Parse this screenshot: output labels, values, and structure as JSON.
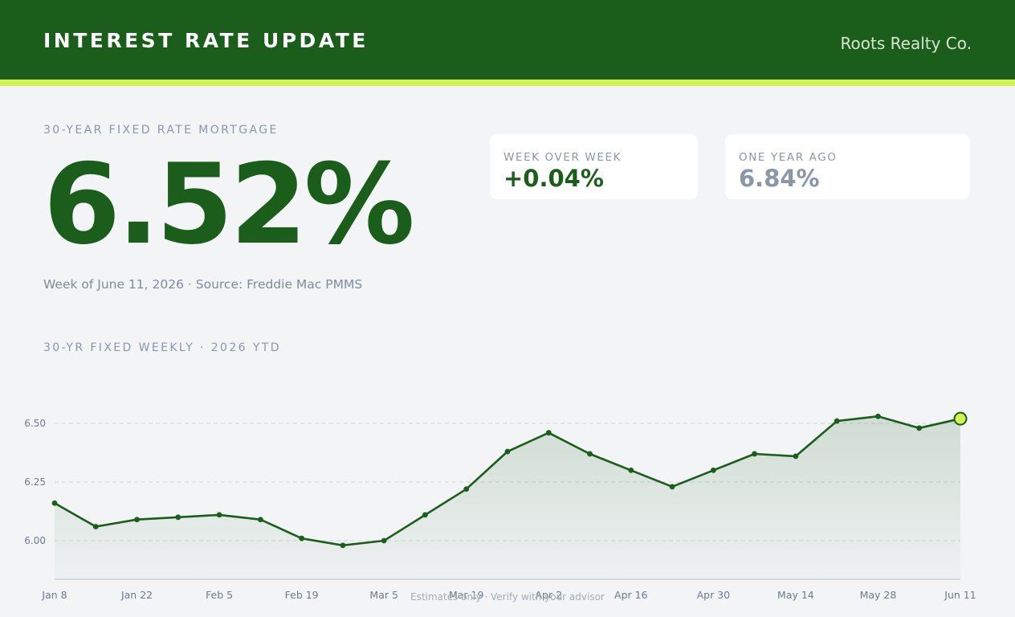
{
  "header": {
    "title": "INTEREST RATE UPDATE",
    "brand": "Roots Realty Co."
  },
  "hero": {
    "eyebrow": "30-YEAR FIXED RATE MORTGAGE",
    "rate": "6.52%",
    "note": "Week of June 11, 2026 · Source: Freddie Mac PMMS"
  },
  "cards": [
    {
      "label": "WEEK OVER WEEK",
      "value": "+0.04%"
    },
    {
      "label": "ONE YEAR AGO",
      "value": "6.84%"
    }
  ],
  "chart_section": {
    "title": "30-YR FIXED WEEKLY · 2026 YTD"
  },
  "footnote": "Estimates only · Verify with your advisor",
  "colors": {
    "brand_green": "#1b5e1b",
    "accent_lime": "#d4f250",
    "muted_gray": "#8a97a8",
    "positive_change": "#1b5e1b",
    "previous_value": "#8a97a8"
  },
  "chart_data": {
    "type": "area",
    "title": "30-YR FIXED WEEKLY · 2026 YTD",
    "x_tick_labels": [
      "Jan 8",
      "Jan 22",
      "Feb 5",
      "Feb 19",
      "Mar 5",
      "Mar 19",
      "Apr 2",
      "Apr 16",
      "Apr 30",
      "May 14",
      "May 28",
      "Jun 11"
    ],
    "y_tick_labels": [
      "6.50",
      "6.25",
      "6.00"
    ],
    "y_ticks": [
      6.5,
      6.25,
      6.0
    ],
    "ylim": [
      5.83,
      6.66
    ],
    "grid": "horizontal dashed",
    "highlight_last_point": true,
    "series": [
      {
        "x": [
          "Jan 8",
          "Jan 15",
          "Jan 22",
          "Jan 29",
          "Feb 5",
          "Feb 12",
          "Feb 19",
          "Feb 26",
          "Mar 5",
          "Mar 12",
          "Mar 19",
          "Mar 26",
          "Apr 2",
          "Apr 9",
          "Apr 16",
          "Apr 23",
          "Apr 30",
          "May 7",
          "May 14",
          "May 21",
          "May 28",
          "Jun 4",
          "Jun 11"
        ],
        "values": [
          6.16,
          6.06,
          6.09,
          6.1,
          6.11,
          6.09,
          6.01,
          5.98,
          6.0,
          6.11,
          6.22,
          6.38,
          6.46,
          6.37,
          6.3,
          6.23,
          6.3,
          6.37,
          6.36,
          6.51,
          6.53,
          6.48,
          6.52
        ]
      }
    ]
  }
}
